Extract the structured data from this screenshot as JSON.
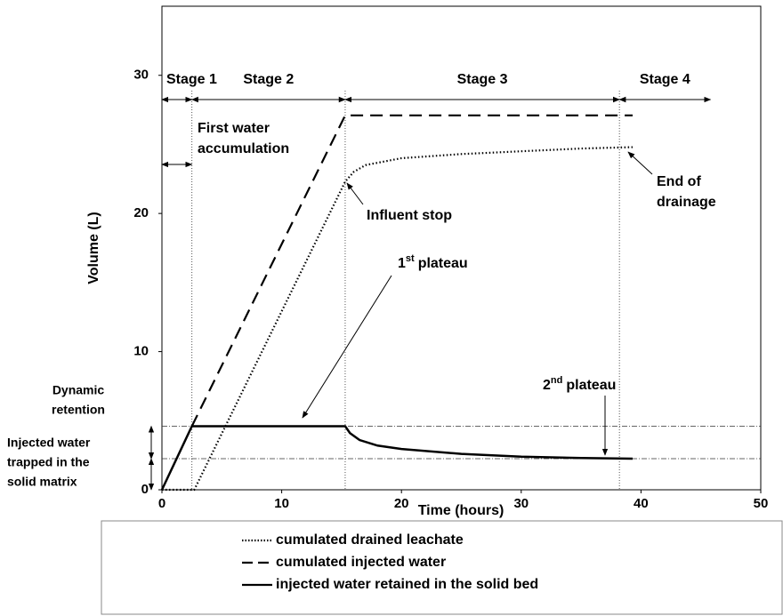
{
  "chart_data": {
    "type": "line",
    "xlabel": "Time (hours)",
    "ylabel": "Volume (L)",
    "xlim": [
      0,
      50
    ],
    "xticks": [
      0,
      10,
      20,
      30,
      40,
      50
    ],
    "ylim": [
      0,
      35
    ],
    "yticks": [
      0,
      10,
      20,
      30
    ],
    "series": [
      {
        "name": "cumulated drained leachate",
        "color": "#000000",
        "style": "dotted",
        "x": [
          0,
          2.7,
          15.3,
          16,
          17,
          20,
          25,
          30,
          35,
          39.3
        ],
        "values": [
          0,
          0,
          22.3,
          23.0,
          23.5,
          24.0,
          24.3,
          24.5,
          24.7,
          24.8
        ]
      },
      {
        "name": "cumulated injected water",
        "color": "#000000",
        "style": "dashed",
        "x": [
          2.5,
          15.3,
          39.3
        ],
        "values": [
          4.6,
          27.1,
          27.1
        ]
      },
      {
        "name": "injected water retained in the solid bed",
        "color": "#000000",
        "style": "solid",
        "x": [
          0,
          2.5,
          15.3,
          15.7,
          16.5,
          18,
          20,
          25,
          30,
          35,
          39.3
        ],
        "values": [
          0,
          4.6,
          4.6,
          4.1,
          3.6,
          3.2,
          2.95,
          2.6,
          2.4,
          2.3,
          2.25
        ]
      }
    ],
    "vlines": [
      2.5,
      15.3,
      38.2
    ],
    "hlines": [
      4.6,
      2.25
    ],
    "stages": [
      {
        "label": "Stage 1",
        "start": 0,
        "end": 2.5
      },
      {
        "label": "Stage 2",
        "start": 2.5,
        "end": 15.3
      },
      {
        "label": "Stage 3",
        "start": 15.3,
        "end": 38.2
      },
      {
        "label": "Stage 4",
        "start": 38.2,
        "end": 45.8
      }
    ],
    "annotations": {
      "first_water": [
        "First water",
        "accumulation"
      ],
      "influent_stop": "Influent stop",
      "end_drainage": [
        "End of",
        "drainage"
      ],
      "plateau_1": {
        "number": "1",
        "suffix": "st",
        "text": "plateau"
      },
      "plateau_2": {
        "number": "2",
        "suffix": "nd",
        "text": "plateau"
      },
      "dynamic_retention": [
        "Dynamic",
        "retention"
      ],
      "trapped": [
        "Injected water",
        "trapped in the",
        "solid matrix"
      ]
    }
  }
}
